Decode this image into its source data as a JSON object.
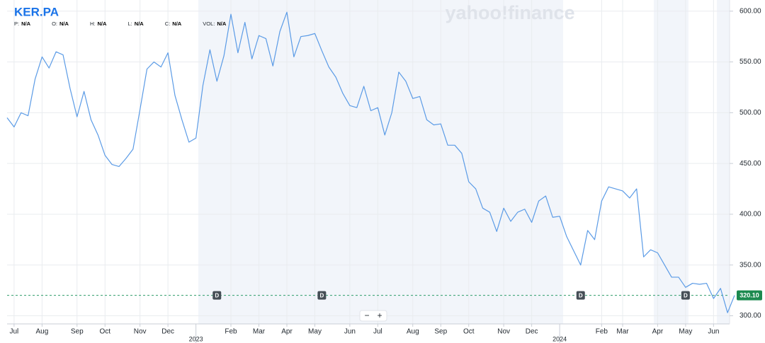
{
  "chart_data": {
    "type": "line",
    "title": "KER.PA",
    "watermark": "yahoo!finance",
    "ohlc": [
      {
        "label": "P:",
        "value": "N/A"
      },
      {
        "label": "O:",
        "value": "N/A"
      },
      {
        "label": "H:",
        "value": "N/A"
      },
      {
        "label": "L:",
        "value": "N/A"
      },
      {
        "label": "C:",
        "value": "N/A"
      },
      {
        "label": "VOL:",
        "value": "N/A"
      }
    ],
    "color": "#5b9be6",
    "grid": true,
    "categories": [
      null,
      "Jul",
      null,
      null,
      null,
      "Aug",
      null,
      null,
      null,
      null,
      "Sep",
      null,
      null,
      null,
      "Oct",
      null,
      null,
      null,
      null,
      "Nov",
      null,
      null,
      null,
      "Dec",
      null,
      null,
      null,
      null,
      null,
      null,
      null,
      null,
      "Feb",
      null,
      null,
      null,
      "Mar",
      null,
      null,
      null,
      "Apr",
      null,
      null,
      null,
      "May",
      null,
      null,
      null,
      null,
      "Jun",
      null,
      null,
      null,
      "Jul",
      null,
      null,
      null,
      null,
      "Aug",
      null,
      null,
      null,
      "Sep",
      null,
      null,
      null,
      "Oct",
      null,
      null,
      null,
      null,
      "Nov",
      null,
      null,
      null,
      "Dec",
      null,
      null,
      null,
      null,
      null,
      null,
      null,
      null,
      null,
      "Feb",
      null,
      null,
      "Mar",
      null,
      null,
      null,
      null,
      "Apr",
      null,
      null,
      null,
      "May",
      null,
      null,
      null,
      "Jun",
      null,
      null,
      null
    ],
    "years": [
      null,
      null,
      null,
      null,
      null,
      null,
      null,
      null,
      null,
      null,
      null,
      null,
      null,
      null,
      null,
      null,
      null,
      null,
      null,
      null,
      null,
      null,
      null,
      null,
      null,
      null,
      null,
      "2023",
      null,
      null,
      null,
      null,
      null,
      null,
      null,
      null,
      null,
      null,
      null,
      null,
      null,
      null,
      null,
      null,
      null,
      null,
      null,
      null,
      null,
      null,
      null,
      null,
      null,
      null,
      null,
      null,
      null,
      null,
      null,
      null,
      null,
      null,
      null,
      null,
      null,
      null,
      null,
      null,
      null,
      null,
      null,
      null,
      null,
      null,
      null,
      null,
      null,
      null,
      null,
      "2024",
      null,
      null,
      null,
      null,
      null,
      null,
      null,
      null,
      null,
      null,
      null,
      null,
      null,
      null,
      null,
      null,
      null,
      null,
      null,
      null,
      null,
      null,
      null,
      null,
      null
    ],
    "dividends": [
      null,
      null,
      null,
      null,
      null,
      null,
      null,
      null,
      null,
      null,
      null,
      null,
      null,
      null,
      null,
      null,
      null,
      null,
      null,
      null,
      null,
      null,
      null,
      null,
      null,
      null,
      null,
      null,
      null,
      null,
      "D",
      null,
      null,
      null,
      null,
      null,
      null,
      null,
      null,
      null,
      null,
      null,
      null,
      null,
      null,
      "D",
      null,
      null,
      null,
      null,
      null,
      null,
      null,
      null,
      null,
      null,
      null,
      null,
      null,
      null,
      null,
      null,
      null,
      null,
      null,
      null,
      null,
      null,
      null,
      null,
      null,
      null,
      null,
      null,
      null,
      null,
      null,
      null,
      null,
      null,
      null,
      null,
      "D",
      null,
      null,
      null,
      null,
      null,
      null,
      null,
      null,
      null,
      null,
      null,
      null,
      null,
      null,
      "D",
      null,
      null,
      null,
      null,
      null,
      null,
      null
    ],
    "values": [
      495,
      486,
      500,
      497,
      533,
      555,
      544,
      560,
      557,
      524,
      496,
      521,
      493,
      478,
      458,
      449,
      447,
      455,
      464,
      503,
      543,
      550,
      545,
      559,
      517,
      493,
      471,
      475,
      527,
      562,
      531,
      556,
      597,
      559,
      589,
      553,
      576,
      573,
      546,
      580,
      599,
      555,
      575,
      576,
      578,
      561,
      545,
      535,
      519,
      507,
      505,
      526,
      502,
      505,
      478,
      500,
      540,
      531,
      514,
      516,
      493,
      488,
      489,
      468,
      468,
      460,
      432,
      425,
      406,
      402,
      383,
      406,
      393,
      402,
      405,
      392,
      413,
      418,
      397,
      398,
      378,
      364,
      350,
      384,
      375,
      413,
      427,
      425,
      423,
      416,
      425,
      358,
      365,
      362,
      350,
      338,
      338,
      328,
      332,
      331,
      332,
      317,
      327,
      303,
      320.1
    ],
    "last_price": 320.1,
    "last_price_label": "320.10",
    "ylim": [
      292,
      611
    ],
    "yticks": [
      {
        "value": 300,
        "label": "300.00"
      },
      {
        "value": 350,
        "label": "350.00"
      },
      {
        "value": 400,
        "label": "400.00"
      },
      {
        "value": 450,
        "label": "450.00"
      },
      {
        "value": 500,
        "label": "500.00"
      },
      {
        "value": 550,
        "label": "550.00"
      },
      {
        "value": 600,
        "label": "600.00"
      }
    ],
    "zoom": [
      "−",
      "+"
    ]
  }
}
